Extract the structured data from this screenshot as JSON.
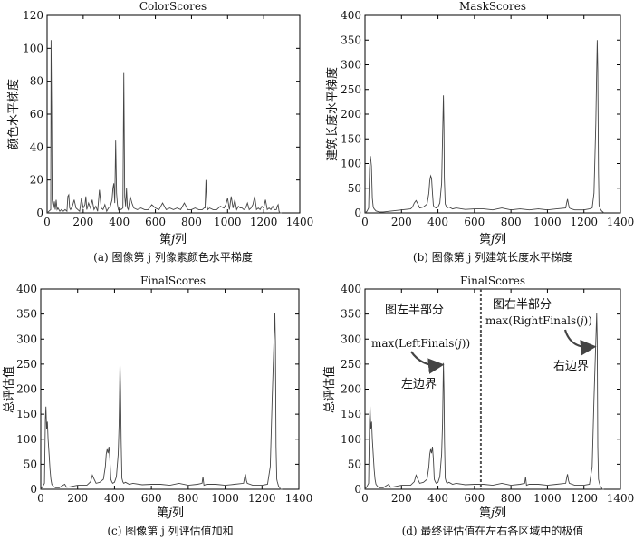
{
  "figure": {
    "axis_label_x_prefix": "第",
    "axis_label_x_var": "j",
    "axis_label_x_suffix": "列"
  },
  "chart_data": [
    {
      "type": "line",
      "title": "ColorScores",
      "xlabel": "第j列",
      "ylabel": "颜色水平梯度",
      "caption": "(a) 图像第 j 列像素颜色水平梯度",
      "xlim": [
        0,
        1400
      ],
      "ylim": [
        0,
        120
      ],
      "xticks": [
        0,
        200,
        400,
        600,
        800,
        1000,
        1200,
        1400
      ],
      "yticks": [
        0,
        20,
        40,
        60,
        80,
        100,
        120
      ],
      "grid": false,
      "series": [
        {
          "x": [
            0,
            10,
            20,
            22,
            25,
            28,
            30,
            35,
            40,
            45,
            50,
            55,
            60,
            65,
            70,
            80,
            90,
            100,
            110,
            115,
            120,
            125,
            130,
            140,
            150,
            160,
            170,
            180,
            190,
            200,
            210,
            215,
            220,
            230,
            240,
            250,
            260,
            270,
            280,
            290,
            300,
            310,
            320,
            330,
            340,
            350,
            360,
            365,
            370,
            375,
            380,
            385,
            390,
            395,
            400,
            410,
            420,
            425,
            430,
            435,
            440,
            445,
            450,
            460,
            470,
            480,
            500,
            520,
            540,
            560,
            580,
            600,
            620,
            640,
            660,
            680,
            700,
            720,
            740,
            760,
            780,
            800,
            820,
            840,
            860,
            870,
            875,
            880,
            885,
            890,
            900,
            920,
            940,
            960,
            980,
            990,
            1000,
            1010,
            1020,
            1030,
            1040,
            1050,
            1060,
            1070,
            1080,
            1090,
            1100,
            1110,
            1120,
            1130,
            1140,
            1150,
            1160,
            1170,
            1180,
            1190,
            1200,
            1210,
            1220,
            1230,
            1240,
            1250,
            1260,
            1270,
            1275,
            1280,
            1285,
            1290,
            1300
          ],
          "y": [
            0,
            1,
            2,
            105,
            65,
            8,
            6,
            3,
            7,
            2,
            8,
            2,
            3,
            2,
            1,
            2,
            1,
            2,
            1,
            10,
            11,
            3,
            2,
            4,
            8,
            3,
            2,
            1,
            9,
            3,
            5,
            10,
            2,
            6,
            3,
            8,
            2,
            4,
            1,
            14,
            3,
            2,
            5,
            1,
            3,
            4,
            8,
            15,
            18,
            6,
            44,
            12,
            5,
            2,
            3,
            2,
            3,
            85,
            10,
            4,
            15,
            3,
            2,
            10,
            6,
            3,
            2,
            3,
            2,
            2,
            5,
            3,
            2,
            6,
            2,
            3,
            2,
            3,
            2,
            6,
            2,
            2,
            3,
            2,
            2,
            3,
            3,
            20,
            5,
            2,
            3,
            2,
            2,
            4,
            3,
            5,
            9,
            2,
            10,
            3,
            8,
            2,
            4,
            3,
            3,
            2,
            3,
            6,
            2,
            3,
            5,
            10,
            2,
            3,
            2,
            4,
            3,
            8,
            2,
            3,
            2,
            4,
            2,
            2,
            4,
            5,
            1,
            0,
            0
          ]
        }
      ]
    },
    {
      "type": "line",
      "title": "MaskScores",
      "xlabel": "第j列",
      "ylabel": "建筑长度水平梯度",
      "caption": "(b) 图像第 j 列建筑长度水平梯度",
      "xlim": [
        0,
        1400
      ],
      "ylim": [
        0,
        400
      ],
      "xticks": [
        0,
        200,
        400,
        600,
        800,
        1000,
        1200,
        1400
      ],
      "yticks": [
        0,
        50,
        100,
        150,
        200,
        250,
        300,
        350,
        400
      ],
      "grid": false,
      "series": [
        {
          "x": [
            0,
            10,
            20,
            25,
            30,
            35,
            40,
            45,
            50,
            55,
            60,
            70,
            80,
            100,
            150,
            200,
            250,
            260,
            270,
            280,
            290,
            300,
            320,
            340,
            350,
            355,
            360,
            365,
            370,
            375,
            380,
            390,
            400,
            410,
            420,
            425,
            430,
            433,
            435,
            440,
            445,
            450,
            460,
            480,
            500,
            550,
            600,
            650,
            700,
            750,
            800,
            850,
            900,
            950,
            1000,
            1050,
            1100,
            1105,
            1110,
            1115,
            1120,
            1130,
            1150,
            1200,
            1230,
            1245,
            1255,
            1265,
            1270,
            1273,
            1276,
            1280,
            1283,
            1287,
            1290,
            1295,
            1300,
            1310
          ],
          "y": [
            0,
            3,
            10,
            90,
            115,
            95,
            30,
            12,
            8,
            6,
            4,
            3,
            2,
            2,
            4,
            6,
            8,
            12,
            20,
            25,
            18,
            10,
            12,
            18,
            40,
            65,
            75,
            70,
            40,
            15,
            12,
            10,
            12,
            20,
            60,
            150,
            238,
            170,
            70,
            18,
            14,
            10,
            12,
            8,
            10,
            7,
            8,
            8,
            6,
            10,
            6,
            8,
            6,
            8,
            6,
            8,
            10,
            20,
            28,
            18,
            10,
            8,
            6,
            6,
            8,
            10,
            40,
            180,
            290,
            350,
            290,
            80,
            15,
            12,
            8,
            5,
            3,
            0
          ]
        }
      ]
    },
    {
      "type": "line",
      "title": "FinalScores",
      "xlabel": "第j列",
      "ylabel": "总评估值",
      "caption": "(c) 图像第 j 列评估值加和",
      "xlim": [
        0,
        1400
      ],
      "ylim": [
        0,
        400
      ],
      "xticks": [
        0,
        200,
        400,
        600,
        800,
        1000,
        1200,
        1400
      ],
      "yticks": [
        0,
        50,
        100,
        150,
        200,
        250,
        300,
        350,
        400
      ],
      "grid": false,
      "series": [
        {
          "x": [
            0,
            10,
            20,
            25,
            28,
            32,
            36,
            40,
            45,
            50,
            55,
            60,
            70,
            80,
            100,
            120,
            130,
            140,
            160,
            200,
            250,
            270,
            280,
            290,
            300,
            320,
            340,
            350,
            355,
            360,
            365,
            370,
            375,
            380,
            385,
            390,
            400,
            410,
            420,
            425,
            430,
            433,
            436,
            440,
            445,
            450,
            460,
            480,
            500,
            550,
            600,
            650,
            700,
            750,
            800,
            850,
            875,
            880,
            885,
            900,
            950,
            1000,
            1050,
            1100,
            1105,
            1110,
            1115,
            1120,
            1150,
            1200,
            1230,
            1245,
            1255,
            1265,
            1270,
            1273,
            1276,
            1280,
            1283,
            1287,
            1290,
            1295,
            1300,
            1310
          ],
          "y": [
            0,
            5,
            12,
            140,
            165,
            120,
            135,
            100,
            70,
            40,
            20,
            10,
            5,
            3,
            3,
            8,
            10,
            4,
            5,
            8,
            8,
            15,
            28,
            20,
            12,
            14,
            20,
            45,
            70,
            80,
            72,
            85,
            60,
            20,
            15,
            12,
            14,
            25,
            70,
            130,
            252,
            200,
            95,
            22,
            15,
            12,
            14,
            10,
            12,
            9,
            10,
            10,
            8,
            12,
            8,
            10,
            12,
            25,
            8,
            10,
            10,
            8,
            10,
            12,
            22,
            30,
            18,
            12,
            8,
            8,
            10,
            45,
            180,
            295,
            352,
            295,
            85,
            20,
            15,
            10,
            6,
            4,
            0,
            0
          ]
        }
      ]
    },
    {
      "type": "line",
      "title": "FinalScores",
      "xlabel": "第j列",
      "ylabel": "总评估值",
      "caption": "(d) 最终评估值在左右各区域中的极值",
      "xlim": [
        0,
        1400
      ],
      "ylim": [
        0,
        400
      ],
      "xticks": [
        0,
        200,
        400,
        600,
        800,
        1000,
        1200,
        1400
      ],
      "yticks": [
        0,
        50,
        100,
        150,
        200,
        250,
        300,
        350,
        400
      ],
      "grid": false,
      "divider_x": 635,
      "annotations": {
        "left_region": "图左半部分",
        "right_region": "图右半部分",
        "left_max": "max(LeftFinals(",
        "right_max": "max(RightFinals(",
        "max_var": "j",
        "max_close": "))",
        "left_edge": "左边界",
        "right_edge": "右边界"
      },
      "series": [
        {
          "x": [
            0,
            10,
            20,
            25,
            28,
            32,
            36,
            40,
            45,
            50,
            55,
            60,
            70,
            80,
            100,
            120,
            130,
            140,
            160,
            200,
            250,
            270,
            280,
            290,
            300,
            320,
            340,
            350,
            355,
            360,
            365,
            370,
            375,
            380,
            385,
            390,
            400,
            410,
            420,
            425,
            430,
            433,
            436,
            440,
            445,
            450,
            460,
            480,
            500,
            550,
            600,
            650,
            700,
            750,
            800,
            850,
            875,
            880,
            885,
            900,
            950,
            1000,
            1050,
            1100,
            1105,
            1110,
            1115,
            1120,
            1150,
            1200,
            1230,
            1245,
            1255,
            1265,
            1270,
            1273,
            1276,
            1280,
            1283,
            1287,
            1290,
            1295,
            1300,
            1310
          ],
          "y": [
            0,
            5,
            12,
            140,
            165,
            120,
            135,
            100,
            70,
            40,
            20,
            10,
            5,
            3,
            3,
            8,
            10,
            4,
            5,
            8,
            8,
            15,
            28,
            20,
            12,
            14,
            20,
            45,
            70,
            80,
            72,
            85,
            60,
            20,
            15,
            12,
            14,
            25,
            70,
            130,
            252,
            200,
            95,
            22,
            15,
            12,
            14,
            10,
            12,
            9,
            10,
            10,
            8,
            12,
            8,
            10,
            12,
            25,
            8,
            10,
            10,
            8,
            10,
            12,
            22,
            30,
            18,
            12,
            8,
            8,
            10,
            45,
            180,
            295,
            352,
            295,
            85,
            20,
            15,
            10,
            6,
            4,
            0,
            0
          ]
        }
      ]
    }
  ]
}
